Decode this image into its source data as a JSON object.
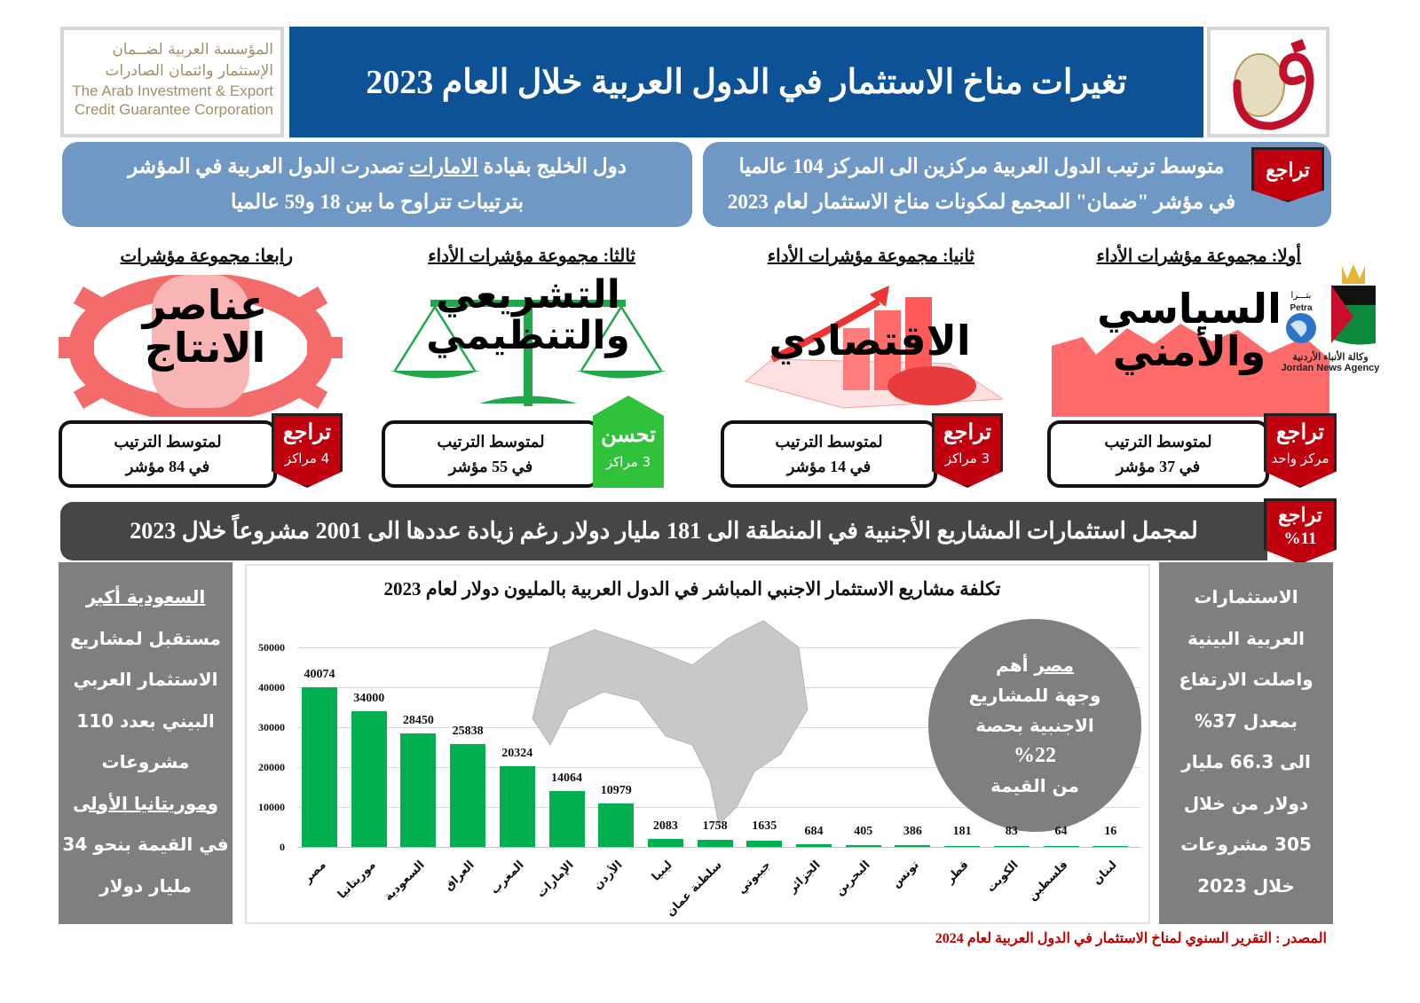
{
  "header": {
    "title": "تغيرات مناخ الاستثمار في الدول العربية خلال العام 2023",
    "logo_left": {
      "arabic_line1": "المؤسسة العربية لضــمان",
      "arabic_line2": "الإستثمار وائتمان الصادرات",
      "english_line1": "The Arab Investment & Export",
      "english_line2": "Credit Guarantee Corporation"
    },
    "logo_right_glyph": "ض"
  },
  "summary": {
    "left": {
      "line1_pre": "دول الخليج بقيادة ",
      "line1_underlined": "الامارات",
      "line1_post": " تصدرت الدول العربية في المؤشر",
      "line2": "بترتيبات تتراوح ما بين 18 و59 عالميا"
    },
    "right": {
      "tag": "تراجع",
      "line1": "متوسط ترتيب الدول العربية مركزين الى المركز 104 عالميا",
      "line2": "في مؤشر \"ضمان\" المجمع لمكونات مناخ الاستثمار لعام 2023"
    }
  },
  "categories": [
    {
      "heading": "أولا: مجموعة مؤشرات الأداء",
      "title_line1": "السياسي",
      "title_line2": "والأمني",
      "rank_line1": "لمتوسط الترتيب",
      "rank_line2": "في 37 مؤشر",
      "status": "تراجع",
      "change": "مركز واحد",
      "status_type": "decline"
    },
    {
      "heading": "ثانيا: مجموعة مؤشرات الأداء",
      "title_line1": "الاقتصادي",
      "title_line2": "",
      "rank_line1": "لمتوسط الترتيب",
      "rank_line2": "في 14 مؤشر",
      "status": "تراجع",
      "change": "3 مراكز",
      "status_type": "decline"
    },
    {
      "heading": "ثالثا: مجموعة مؤشرات الأداء",
      "title_line1": "التشريعي",
      "title_line2": "والتنظيمي",
      "rank_line1": "لمتوسط الترتيب",
      "rank_line2": "في 55 مؤشر",
      "status": "تحسن",
      "change": "3 مراكز",
      "status_type": "improve"
    },
    {
      "heading": "رابعا: مجموعة مؤشرات",
      "title_line1": "عناصر",
      "title_line2": "الانتاج",
      "rank_line1": "لمتوسط الترتيب",
      "rank_line2": "في 84 مؤشر",
      "status": "تراجع",
      "change": "4 مراكز",
      "status_type": "decline"
    }
  ],
  "banner": {
    "text": "لمجمل استثمارات المشاريع الأجنبية في المنطقة الى 181 مليار دولار رغم زيادة عددها الى 2001 مشروعاً خلال 2023",
    "tag": "تراجع",
    "tag_value": "%11"
  },
  "side_left": {
    "lines": [
      "السعودية أكبر",
      "مستقبل لمشاريع",
      "الاستثمار العربي",
      "البيني بعدد 110",
      "مشروعات",
      "وموريتانيا الأولى",
      "في القيمة بنحو 34",
      "مليار دولار"
    ]
  },
  "side_right": {
    "lines": [
      "الاستثمارات",
      "العربية البينية",
      "واصلت الارتفاع",
      "بمعدل 37%",
      "الى 66.3 مليار",
      "دولار من خلال",
      "305 مشروعات",
      "خلال 2023"
    ]
  },
  "egypt_note": {
    "line1_underlined": "مصر",
    "line1_post": " أهم",
    "line2": "وجهة للمشاريع",
    "line3": "الاجنبية بحصة",
    "line4": "%22",
    "line5": "من القيمة"
  },
  "petra": {
    "ar_small": "بتـــرا",
    "en_small": "Petra",
    "ar_name": "وكالة الأنباء الأردنية",
    "en_name": "Jordan News Agency"
  },
  "source": "المصدر : التقرير السنوي لمناخ الاستثمار في الدول العربية لعام 2024",
  "colors": {
    "header_blue": "#0d5296",
    "summary_blue": "#6f98c4",
    "decline_red": "#c0000f",
    "improve_green": "#2fc23a",
    "bar_green": "#00b050",
    "banner_gray": "#464646",
    "panel_gray": "#7f7f7f",
    "source_red": "#c00000"
  },
  "chart_data": {
    "type": "bar",
    "title": "تكلفة مشاريع الاستثمار الاجنبي المباشر في الدول العربية بالمليون دولار لعام 2023",
    "xlabel": "",
    "ylabel": "",
    "ylim": [
      0,
      50000
    ],
    "yticks": [
      0,
      10000,
      20000,
      30000,
      40000,
      50000
    ],
    "grid": true,
    "categories": [
      "مصر",
      "موريتانيا",
      "السعودية",
      "العراق",
      "المغرب",
      "الإمارات",
      "الأردن",
      "ليبيا",
      "سلطنة عمان",
      "جيبوتي",
      "الجزائر",
      "البحرين",
      "تونس",
      "قطر",
      "الكويت",
      "فلسطين",
      "لبنان"
    ],
    "values": [
      40074,
      34000,
      28450,
      25838,
      20324,
      14064,
      10979,
      2083,
      1758,
      1635,
      684,
      405,
      386,
      181,
      83,
      64,
      16
    ]
  }
}
